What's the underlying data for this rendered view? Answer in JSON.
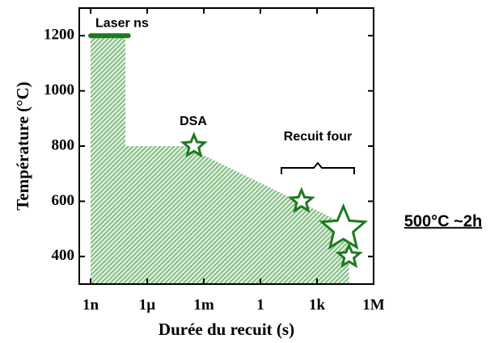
{
  "chart_data": {
    "type": "area",
    "xlabel": "Durée du recuit (s)",
    "ylabel": "Température (°C)",
    "xlog": true,
    "xlim": [
      2.5e-10,
      1000000
    ],
    "ylim": [
      300,
      1300
    ],
    "xticks": [
      {
        "value": 1e-09,
        "label": "1n"
      },
      {
        "value": 1e-06,
        "label": "1µ"
      },
      {
        "value": 0.001,
        "label": "1m"
      },
      1,
      {
        "value": 1000,
        "label": "1k"
      },
      {
        "value": 1000000,
        "label": "1M"
      }
    ],
    "yticks": [
      400,
      600,
      800,
      1000,
      1200
    ],
    "series": [
      {
        "type": "area",
        "color": "#2e8b2e",
        "x": [
          1e-09,
          1e-09,
          7e-08,
          7e-08,
          0.0001,
          50000,
          50000
        ],
        "y": [
          300,
          1200,
          1200,
          800,
          800,
          510,
          300
        ]
      },
      {
        "type": "scatter",
        "color": "#1f7a1f",
        "x": [
          0.0003,
          150,
          25000,
          50000
        ],
        "y": [
          800,
          600,
          500,
          400
        ],
        "sizes": [
          1,
          1,
          2,
          1
        ]
      },
      {
        "name": "Laser ns",
        "type": "line",
        "color": "#1f7a1f",
        "x": [
          1e-09,
          1e-07
        ],
        "y": [
          1200,
          1200
        ]
      }
    ],
    "annotations": [
      {
        "text": "DSA"
      },
      {
        "text": "Recuit four"
      },
      {
        "text": "500°C ~2h"
      }
    ]
  }
}
